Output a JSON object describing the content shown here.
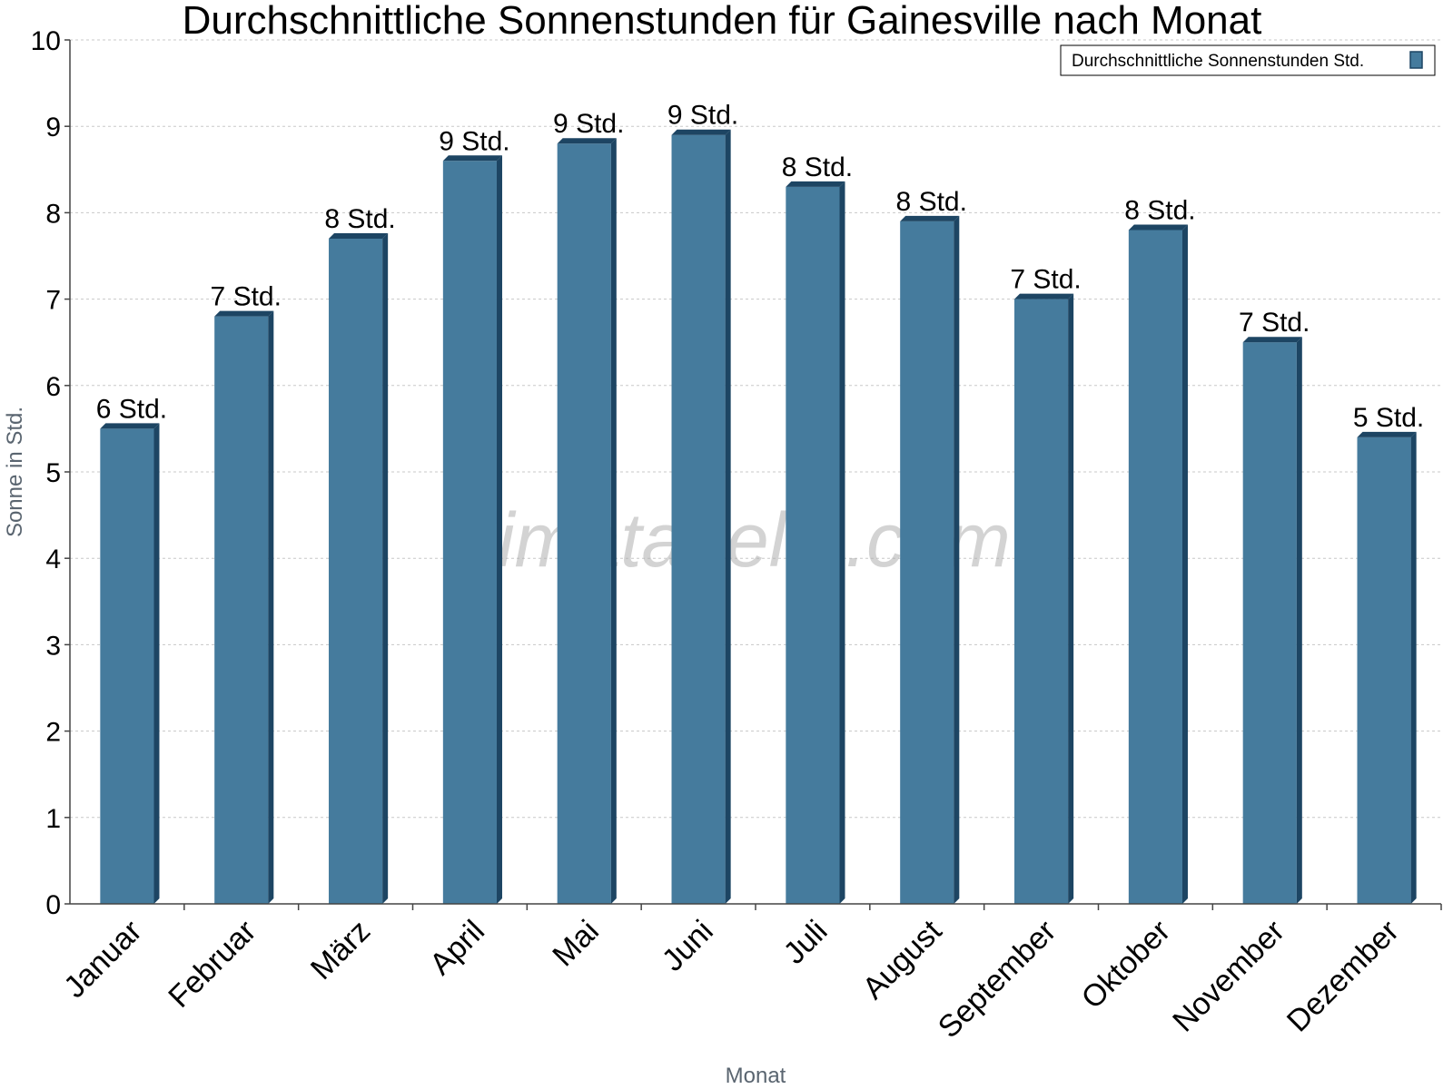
{
  "chart_data": {
    "type": "bar",
    "title": "Durchschnittliche Sonnenstunden für Gainesville nach Monat",
    "xlabel": "Monat",
    "ylabel": "Sonne in Std.",
    "ylim": [
      0,
      10
    ],
    "yticks": [
      "0",
      "1",
      "2",
      "3",
      "4",
      "5",
      "6",
      "7",
      "8",
      "9",
      "10"
    ],
    "grid": true,
    "legend_position": "top-right",
    "categories": [
      "Januar",
      "Februar",
      "März",
      "April",
      "Mai",
      "Juni",
      "Juli",
      "August",
      "September",
      "Oktober",
      "November",
      "Dezember"
    ],
    "series": [
      {
        "name": "Durchschnittliche Sonnenstunden Std.",
        "color": "#457b9d",
        "values": [
          5.5,
          6.8,
          7.7,
          8.6,
          8.8,
          8.9,
          8.3,
          7.9,
          7.0,
          7.8,
          6.5,
          5.4
        ],
        "labels": [
          "6 Std.",
          "7 Std.",
          "8 Std.",
          "9 Std.",
          "9 Std.",
          "9 Std.",
          "8 Std.",
          "8 Std.",
          "7 Std.",
          "8 Std.",
          "7 Std.",
          "5 Std."
        ]
      }
    ]
  },
  "watermark": "klimatabelle.com"
}
